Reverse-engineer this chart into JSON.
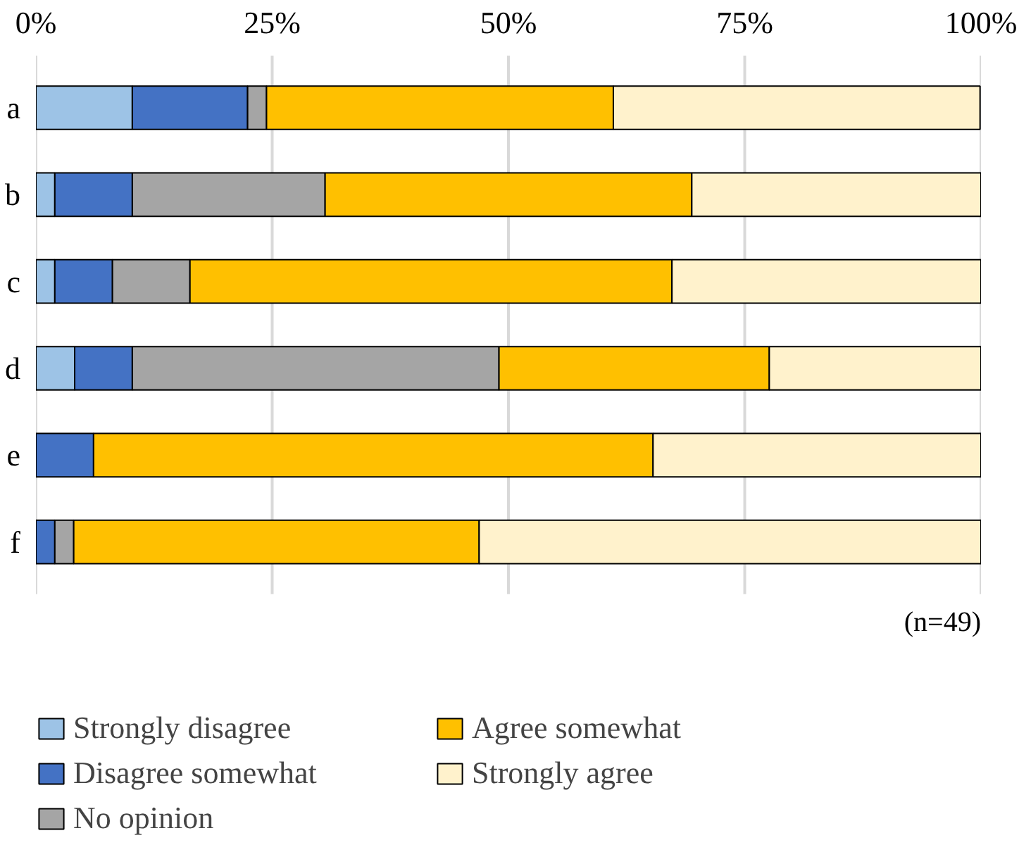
{
  "chart_data": {
    "type": "bar",
    "orientation": "horizontal",
    "stacked": true,
    "categories": [
      "a",
      "b",
      "c",
      "d",
      "e",
      "f"
    ],
    "series": [
      {
        "name": "Strongly disagree",
        "color": "#9dc3e6",
        "values": [
          10.2,
          2.0,
          2.0,
          4.1,
          0,
          0
        ]
      },
      {
        "name": "Disagree somewhat",
        "color": "#4472c4",
        "values": [
          12.2,
          8.2,
          6.1,
          6.1,
          6.1,
          2.0
        ]
      },
      {
        "name": "No opinion",
        "color": "#a5a5a5",
        "values": [
          2.0,
          20.4,
          8.2,
          38.8,
          0,
          2.0
        ]
      },
      {
        "name": "Agree somewhat",
        "color": "#ffc000",
        "values": [
          36.7,
          38.8,
          51.0,
          28.6,
          59.2,
          42.9
        ]
      },
      {
        "name": "Strongly agree",
        "color": "#fff2cc",
        "values": [
          38.8,
          30.6,
          32.7,
          22.4,
          34.7,
          53.1
        ]
      }
    ],
    "xlim": [
      0,
      100
    ],
    "xticks": [
      {
        "value": 0,
        "label": "0%"
      },
      {
        "value": 25,
        "label": "25%"
      },
      {
        "value": 50,
        "label": "50%"
      },
      {
        "value": 75,
        "label": "75%"
      },
      {
        "value": 100,
        "label": "100%"
      }
    ],
    "grid": "x",
    "legend": "bottom",
    "annotations": [
      "(n=49)"
    ]
  }
}
